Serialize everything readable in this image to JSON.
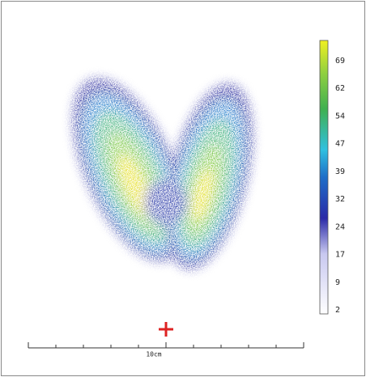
{
  "colorbar": {
    "ticks": [
      "69",
      "62",
      "54",
      "47",
      "39",
      "32",
      "24",
      "17",
      "9",
      "2"
    ]
  },
  "scale_label": "10cm"
}
